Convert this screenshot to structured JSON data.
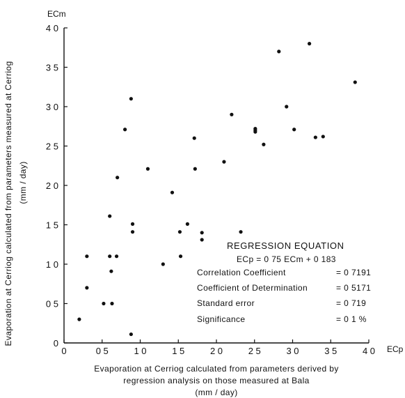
{
  "chart_data": {
    "type": "scatter",
    "x_unit": "ECp",
    "y_unit": "ECm",
    "xlim": [
      0,
      4.0
    ],
    "ylim": [
      0,
      4.0
    ],
    "x_ticks": [
      "0",
      "0 5",
      "1 0",
      "1 5",
      "2 0",
      "2 5",
      "3 0",
      "3 5",
      "4 0"
    ],
    "y_ticks": [
      "0",
      "0 5",
      "1 0",
      "1 5",
      "2 0",
      "2 5",
      "3 0",
      "3 5",
      "4 0"
    ],
    "ylabel_lines": [
      "Evaporation at Cerriog calculated from parameters measured at Cerriog",
      "(mm / day)"
    ],
    "xlabel_lines": [
      "Evaporation at Cerriog calculated from parameters derived by",
      "regression analysis on those measured at Bala",
      "(mm / day)"
    ],
    "points": [
      {
        "x": 0.2,
        "y": 0.3
      },
      {
        "x": 0.3,
        "y": 0.7
      },
      {
        "x": 0.3,
        "y": 1.1
      },
      {
        "x": 0.52,
        "y": 0.5
      },
      {
        "x": 0.6,
        "y": 1.1
      },
      {
        "x": 0.6,
        "y": 1.61
      },
      {
        "x": 0.62,
        "y": 0.91
      },
      {
        "x": 0.63,
        "y": 0.5
      },
      {
        "x": 0.69,
        "y": 1.1
      },
      {
        "x": 0.7,
        "y": 2.1
      },
      {
        "x": 0.8,
        "y": 2.71
      },
      {
        "x": 0.88,
        "y": 3.1
      },
      {
        "x": 0.9,
        "y": 1.41
      },
      {
        "x": 0.9,
        "y": 1.51
      },
      {
        "x": 0.88,
        "y": 0.11
      },
      {
        "x": 1.1,
        "y": 2.21
      },
      {
        "x": 1.3,
        "y": 1.0
      },
      {
        "x": 1.42,
        "y": 1.91
      },
      {
        "x": 1.52,
        "y": 1.41
      },
      {
        "x": 1.53,
        "y": 1.1
      },
      {
        "x": 1.62,
        "y": 1.51
      },
      {
        "x": 1.71,
        "y": 2.6
      },
      {
        "x": 1.72,
        "y": 2.21
      },
      {
        "x": 1.81,
        "y": 1.4
      },
      {
        "x": 1.81,
        "y": 1.31
      },
      {
        "x": 2.1,
        "y": 2.3
      },
      {
        "x": 2.2,
        "y": 2.9
      },
      {
        "x": 2.32,
        "y": 1.41
      },
      {
        "x": 2.51,
        "y": 2.7
      },
      {
        "x": 2.51,
        "y": 2.68
      },
      {
        "x": 2.51,
        "y": 2.72
      },
      {
        "x": 2.62,
        "y": 2.52
      },
      {
        "x": 2.82,
        "y": 3.7
      },
      {
        "x": 2.92,
        "y": 3.0
      },
      {
        "x": 3.02,
        "y": 2.71
      },
      {
        "x": 3.22,
        "y": 3.8
      },
      {
        "x": 3.3,
        "y": 2.61
      },
      {
        "x": 3.4,
        "y": 2.62
      },
      {
        "x": 3.82,
        "y": 3.31
      }
    ],
    "regression": {
      "title": "REGRESSION EQUATION",
      "equation": "ECp = 0 75 ECm + 0 183",
      "stats": [
        {
          "label": "Correlation Coefficient",
          "value": "= 0 7191"
        },
        {
          "label": "Coefficient of Determination",
          "value": "= 0 5171"
        },
        {
          "label": "Standard error",
          "value": "= 0 719"
        },
        {
          "label": "Significance",
          "value": "= 0 1 %"
        }
      ]
    }
  }
}
